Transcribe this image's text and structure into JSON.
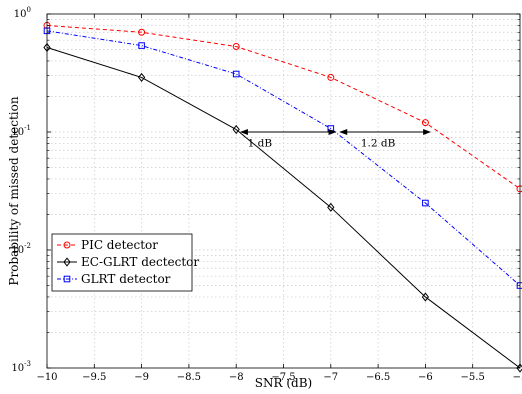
{
  "chart_data": {
    "type": "line",
    "xlabel": "SNR (dB)",
    "ylabel": "Probability of missed detection",
    "xlim": [
      -10,
      -5
    ],
    "ylim": [
      0.001,
      1
    ],
    "yscale": "log",
    "grid": true,
    "legend_position": "bottom-left",
    "x_ticks": [
      -10,
      -9.5,
      -9,
      -8.5,
      -8,
      -7.5,
      -7,
      -6.5,
      -6,
      -5.5,
      -5
    ],
    "x_tick_labels": [
      "−10",
      "−9.5",
      "−9",
      "−8.5",
      "−8",
      "−7.5",
      "−7",
      "−6.5",
      "−6",
      "−5.5",
      "−5"
    ],
    "y_ticks": [
      0.001,
      0.01,
      0.1,
      1
    ],
    "y_tick_labels": [
      {
        "base": "10",
        "exp": "-3"
      },
      {
        "base": "10",
        "exp": "-2"
      },
      {
        "base": "10",
        "exp": "-1"
      },
      {
        "base": "10",
        "exp": "0"
      }
    ],
    "series": [
      {
        "name": "PIC detector",
        "color": "#ff0000",
        "dash": "dashed",
        "marker": "circle",
        "x": [
          -10,
          -9,
          -8,
          -7,
          -6,
          -5
        ],
        "y": [
          0.8,
          0.7,
          0.53,
          0.29,
          0.12,
          0.033
        ]
      },
      {
        "name": "EC-GLRT dectector",
        "color": "#000000",
        "dash": "solid",
        "marker": "diamond",
        "x": [
          -10,
          -9,
          -8,
          -7,
          -6,
          -5
        ],
        "y": [
          0.52,
          0.29,
          0.105,
          0.023,
          0.004,
          0.001
        ]
      },
      {
        "name": "GLRT detector",
        "color": "#0000ff",
        "dash": "dashdot",
        "marker": "square",
        "x": [
          -10,
          -9,
          -8,
          -7,
          -6,
          -5
        ],
        "y": [
          0.72,
          0.54,
          0.31,
          0.107,
          0.025,
          0.005
        ]
      }
    ],
    "annotations": [
      {
        "text": "1 dB",
        "x_start": -7.95,
        "x_end": -6.95,
        "y": 0.1,
        "label_x": -7.75,
        "label_y": 0.075
      },
      {
        "text": "1.2 dB",
        "x_start": -6.9,
        "x_end": -5.95,
        "y": 0.1,
        "label_x": -6.5,
        "label_y": 0.075
      }
    ]
  }
}
